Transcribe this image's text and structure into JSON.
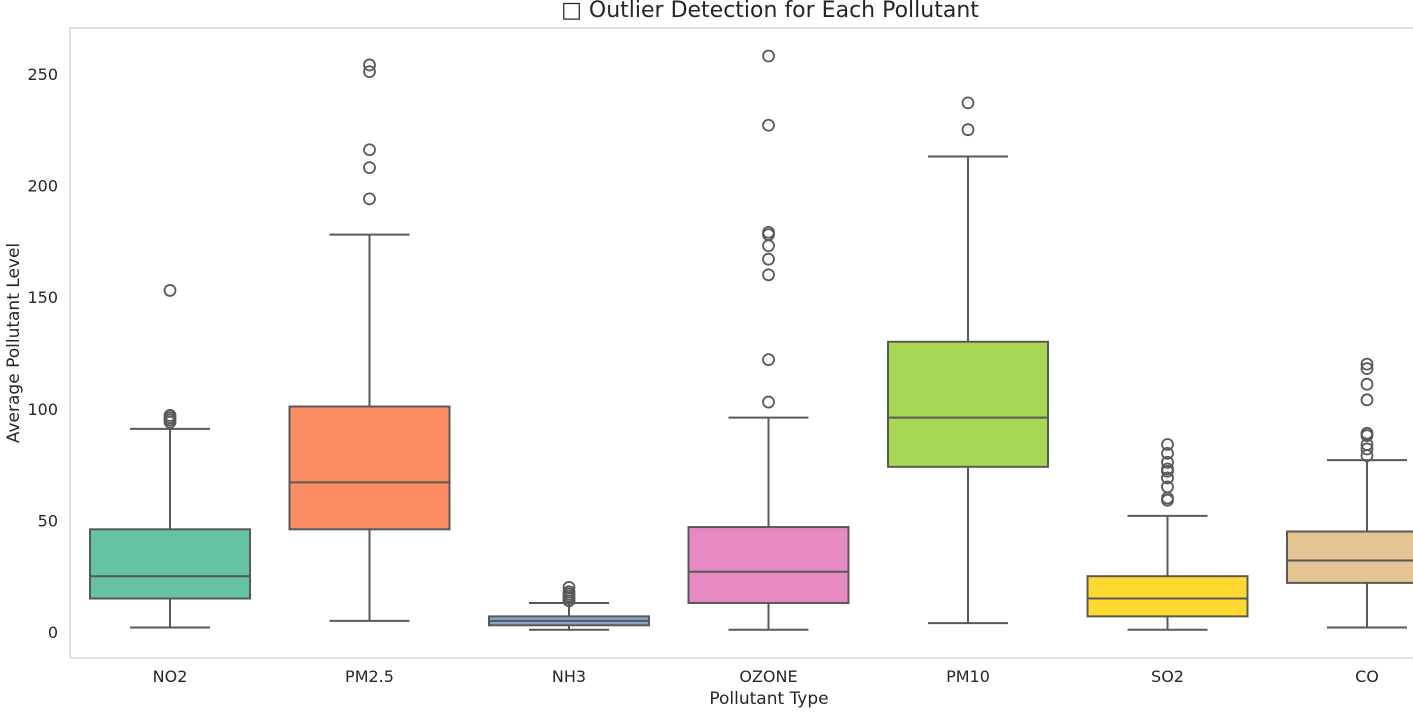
{
  "chart_data": {
    "type": "box",
    "title": "□ Outlier Detection for Each Pollutant",
    "xlabel": "Pollutant Type",
    "ylabel": "Average Pollutant Level",
    "ylim": [
      -12,
      270
    ],
    "yticks": [
      0,
      50,
      100,
      150,
      200,
      250
    ],
    "grid": false,
    "categories": [
      "NO2",
      "PM2.5",
      "NH3",
      "OZONE",
      "PM10",
      "SO2",
      "CO"
    ],
    "boxes": [
      {
        "name": "NO2",
        "color": "#66c2a5",
        "whisker_low": 2,
        "q1": 15,
        "median": 25,
        "q3": 46,
        "whisker_high": 91,
        "outliers": [
          94,
          95,
          96,
          97,
          153
        ]
      },
      {
        "name": "PM2.5",
        "color": "#fc8d62",
        "whisker_low": 5,
        "q1": 46,
        "median": 67,
        "q3": 101,
        "whisker_high": 178,
        "outliers": [
          194,
          208,
          216,
          251,
          254
        ]
      },
      {
        "name": "NH3",
        "color": "#8da0cb",
        "whisker_low": 1,
        "q1": 3,
        "median": 5,
        "q3": 7,
        "whisker_high": 13,
        "outliers": [
          14,
          15,
          16,
          17,
          18,
          20
        ]
      },
      {
        "name": "OZONE",
        "color": "#e78ac3",
        "whisker_low": 1,
        "q1": 13,
        "median": 27,
        "q3": 47,
        "whisker_high": 96,
        "outliers": [
          103,
          122,
          160,
          167,
          173,
          178,
          179,
          227,
          258
        ]
      },
      {
        "name": "PM10",
        "color": "#a6d854",
        "whisker_low": 4,
        "q1": 74,
        "median": 96,
        "q3": 130,
        "whisker_high": 213,
        "outliers": [
          225,
          237
        ]
      },
      {
        "name": "SO2",
        "color": "#ffd92f",
        "whisker_low": 1,
        "q1": 7,
        "median": 15,
        "q3": 25,
        "whisker_high": 52,
        "outliers": [
          59,
          60,
          65,
          69,
          72,
          73,
          76,
          80,
          84
        ]
      },
      {
        "name": "CO",
        "color": "#e5c494",
        "whisker_low": 2,
        "q1": 22,
        "median": 32,
        "q3": 45,
        "whisker_high": 77,
        "outliers": [
          79,
          82,
          84,
          88,
          89,
          104,
          111,
          118,
          120
        ]
      }
    ]
  }
}
